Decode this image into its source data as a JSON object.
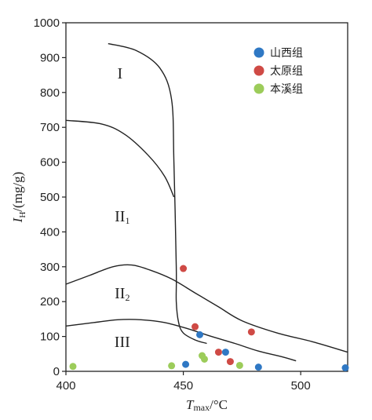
{
  "chart_data": {
    "type": "scatter",
    "ylabel": {
      "main": "I",
      "sub": "H",
      "rest": "/(mg/g)"
    },
    "xlabel": {
      "main": "T",
      "sub": "max",
      "rest": "/°C"
    },
    "xlim": [
      400,
      520
    ],
    "ylim": [
      0,
      1000
    ],
    "x_ticks": [
      400,
      450,
      500
    ],
    "y_ticks": [
      0,
      100,
      200,
      300,
      400,
      500,
      600,
      700,
      800,
      900,
      1000
    ],
    "grid": false,
    "legend_position": "top-right",
    "colors": {
      "shanxi": "#2f78c4",
      "taiyuan": "#cf4a45",
      "benxi": "#9ccc5a"
    },
    "series": [
      {
        "name": "山西组",
        "color_key": "shanxi",
        "points": [
          [
            451,
            20
          ],
          [
            457,
            105
          ],
          [
            468,
            55
          ],
          [
            482,
            12
          ],
          [
            519,
            10
          ]
        ]
      },
      {
        "name": "太原组",
        "color_key": "taiyuan",
        "points": [
          [
            450,
            295
          ],
          [
            455,
            128
          ],
          [
            465,
            55
          ],
          [
            470,
            28
          ],
          [
            479,
            113
          ]
        ]
      },
      {
        "name": "本溪组",
        "color_key": "benxi",
        "points": [
          [
            403,
            14
          ],
          [
            445,
            16
          ],
          [
            458,
            45
          ],
          [
            459,
            35
          ],
          [
            474,
            17
          ]
        ]
      }
    ],
    "curves": [
      {
        "points": [
          [
            418,
            940
          ],
          [
            430,
            920
          ],
          [
            440,
            870
          ],
          [
            445,
            780
          ],
          [
            446,
            600
          ],
          [
            447,
            300
          ],
          [
            447,
            200
          ],
          [
            448,
            140
          ],
          [
            450,
            110
          ],
          [
            455,
            90
          ],
          [
            460,
            80
          ]
        ]
      },
      {
        "points": [
          [
            400,
            720
          ],
          [
            415,
            710
          ],
          [
            425,
            680
          ],
          [
            435,
            620
          ],
          [
            442,
            560
          ],
          [
            446,
            500
          ]
        ]
      },
      {
        "points": [
          [
            400,
            250
          ],
          [
            410,
            275
          ],
          [
            420,
            300
          ],
          [
            428,
            305
          ],
          [
            436,
            290
          ],
          [
            445,
            265
          ],
          [
            455,
            225
          ],
          [
            465,
            185
          ],
          [
            475,
            145
          ],
          [
            490,
            110
          ],
          [
            505,
            85
          ],
          [
            520,
            55
          ]
        ]
      },
      {
        "points": [
          [
            400,
            130
          ],
          [
            412,
            140
          ],
          [
            422,
            148
          ],
          [
            432,
            148
          ],
          [
            442,
            140
          ],
          [
            452,
            122
          ],
          [
            462,
            100
          ],
          [
            472,
            80
          ],
          [
            482,
            58
          ],
          [
            492,
            42
          ],
          [
            498,
            30
          ]
        ]
      }
    ],
    "regions": [
      {
        "label": "I",
        "sub": "",
        "x": 423,
        "y": 840
      },
      {
        "label": "II",
        "sub": "1",
        "x": 424,
        "y": 430
      },
      {
        "label": "II",
        "sub": "2",
        "x": 424,
        "y": 210
      },
      {
        "label": "III",
        "sub": "",
        "x": 424,
        "y": 70
      }
    ]
  }
}
